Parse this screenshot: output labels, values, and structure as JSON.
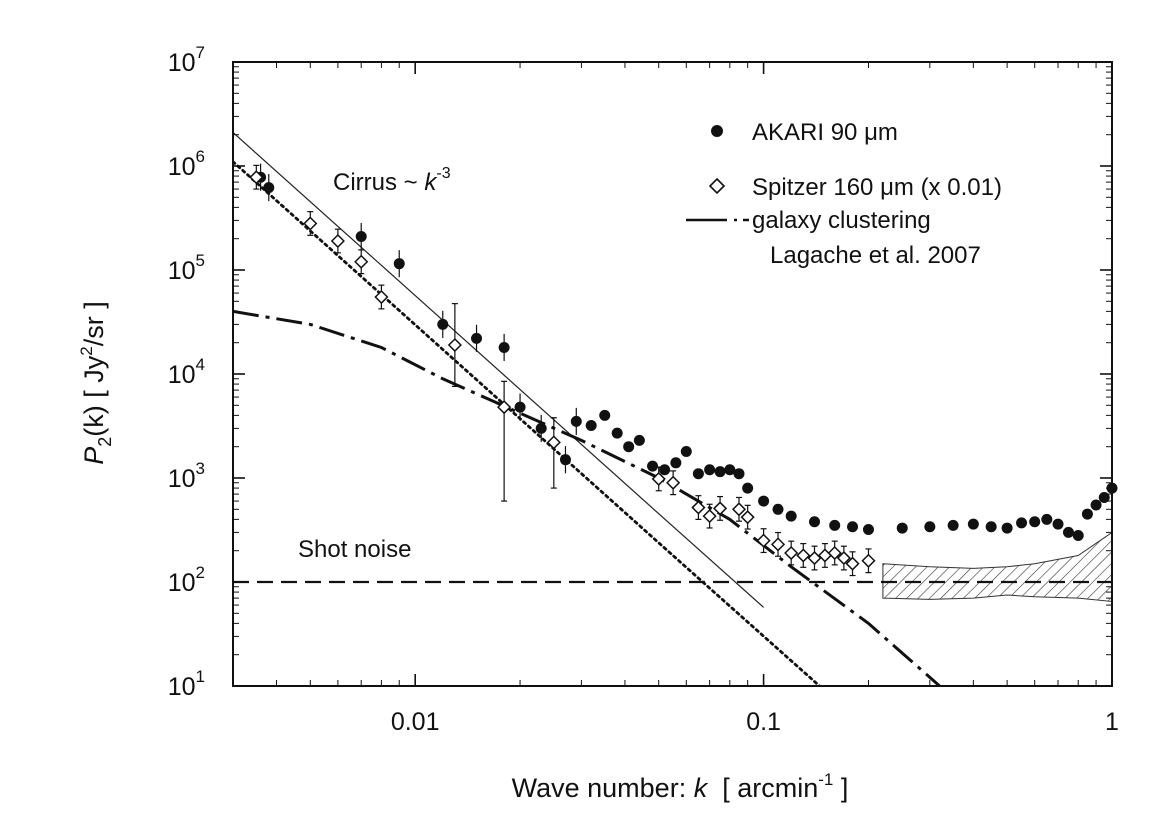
{
  "chart_data": {
    "type": "scatter",
    "title": "",
    "xscale": "log",
    "yscale": "log",
    "xlim": [
      0.003,
      1
    ],
    "ylim": [
      10,
      10000000
    ],
    "xlabel": {
      "main": "Wave number: ",
      "var": "k",
      "open": "  [ arcmin",
      "sup": "-1",
      "close": " ]"
    },
    "ylabel": {
      "var": "P",
      "sub": "2",
      "arg": "(k)",
      "open": "  [ Jy",
      "sup": "2",
      "close": "/sr ]"
    },
    "xticks": [
      {
        "value": 0.01,
        "label": "0.01"
      },
      {
        "value": 0.1,
        "label": "0.1"
      },
      {
        "value": 1,
        "label": "1"
      }
    ],
    "yticks": [
      {
        "value": 10,
        "base": "10",
        "exp": "1"
      },
      {
        "value": 100,
        "base": "10",
        "exp": "2"
      },
      {
        "value": 1000,
        "base": "10",
        "exp": "3"
      },
      {
        "value": 10000,
        "base": "10",
        "exp": "4"
      },
      {
        "value": 100000,
        "base": "10",
        "exp": "5"
      },
      {
        "value": 1000000,
        "base": "10",
        "exp": "6"
      },
      {
        "value": 10000000,
        "base": "10",
        "exp": "7"
      }
    ],
    "legend": {
      "position": "top-right",
      "entries": [
        {
          "series": "akari",
          "label_pre": "AKARI 90 ",
          "mu": "μ",
          "label_post": "m"
        },
        {
          "series": "spitzer",
          "label_pre": "Spitzer 160 ",
          "mu": "μ",
          "label_post": "m (x 0.01)"
        },
        {
          "series": "clustering",
          "label_pre": "galaxy clustering",
          "mu": "",
          "label_post": "",
          "line2": "Lagache et al. 2007"
        }
      ]
    },
    "annotations": {
      "cirrus": {
        "text": "Cirrus ~ ",
        "var": "k",
        "sup": "-3"
      },
      "shot_noise": {
        "text": "Shot noise"
      }
    },
    "series": [
      {
        "name": "AKARI 90 μm",
        "id": "akari",
        "style": "filled-circle",
        "points": [
          [
            0.0036,
            780000
          ],
          [
            0.0038,
            620000
          ],
          [
            0.007,
            210000
          ],
          [
            0.009,
            115000
          ],
          [
            0.012,
            30000
          ],
          [
            0.015,
            22000
          ],
          [
            0.018,
            18000
          ],
          [
            0.02,
            4800
          ],
          [
            0.023,
            3000
          ],
          [
            0.027,
            1500
          ],
          [
            0.029,
            3500
          ],
          [
            0.032,
            3200
          ],
          [
            0.035,
            4000
          ],
          [
            0.038,
            2700
          ],
          [
            0.041,
            2000
          ],
          [
            0.044,
            2300
          ],
          [
            0.048,
            1300
          ],
          [
            0.052,
            1200
          ],
          [
            0.056,
            1400
          ],
          [
            0.06,
            1800
          ],
          [
            0.065,
            1100
          ],
          [
            0.07,
            1200
          ],
          [
            0.075,
            1150
          ],
          [
            0.08,
            1200
          ],
          [
            0.085,
            1100
          ],
          [
            0.09,
            800
          ],
          [
            0.1,
            600
          ],
          [
            0.11,
            500
          ],
          [
            0.12,
            430
          ],
          [
            0.14,
            380
          ],
          [
            0.16,
            350
          ],
          [
            0.18,
            340
          ],
          [
            0.2,
            320
          ],
          [
            0.25,
            330
          ],
          [
            0.3,
            340
          ],
          [
            0.35,
            350
          ],
          [
            0.4,
            360
          ],
          [
            0.45,
            340
          ],
          [
            0.5,
            330
          ],
          [
            0.55,
            370
          ],
          [
            0.6,
            380
          ],
          [
            0.65,
            400
          ],
          [
            0.7,
            360
          ],
          [
            0.75,
            300
          ],
          [
            0.8,
            280
          ],
          [
            0.85,
            450
          ],
          [
            0.9,
            550
          ],
          [
            0.95,
            650
          ],
          [
            1.0,
            800
          ]
        ]
      },
      {
        "name": "Spitzer 160 μm (x 0.01)",
        "id": "spitzer",
        "style": "open-diamond",
        "points": [
          [
            0.0035,
            780000
          ],
          [
            0.005,
            280000
          ],
          [
            0.006,
            190000
          ],
          [
            0.007,
            120000
          ],
          [
            0.008,
            55000
          ],
          [
            0.013,
            19000
          ],
          [
            0.018,
            4800
          ],
          [
            0.025,
            2200
          ],
          [
            0.05,
            980
          ],
          [
            0.055,
            900
          ],
          [
            0.065,
            520
          ],
          [
            0.07,
            430
          ],
          [
            0.075,
            510
          ],
          [
            0.085,
            500
          ],
          [
            0.09,
            420
          ],
          [
            0.1,
            250
          ],
          [
            0.11,
            230
          ],
          [
            0.12,
            190
          ],
          [
            0.13,
            180
          ],
          [
            0.14,
            170
          ],
          [
            0.15,
            180
          ],
          [
            0.16,
            190
          ],
          [
            0.17,
            170
          ],
          [
            0.18,
            150
          ],
          [
            0.2,
            160
          ]
        ]
      },
      {
        "name": "Cirrus ~ k^-3 fit",
        "id": "cirrus_fit",
        "style": "thin-solid",
        "points": [
          [
            0.003,
            2100000
          ],
          [
            0.01,
            56700
          ],
          [
            0.05,
            454
          ],
          [
            0.1,
            57
          ]
        ]
      },
      {
        "name": "Spitzer cirrus fit",
        "id": "spitzer_fit",
        "style": "dotted",
        "points": [
          [
            0.003,
            1100000
          ],
          [
            0.01,
            29700
          ],
          [
            0.05,
            238
          ],
          [
            0.15,
            9
          ]
        ]
      },
      {
        "name": "galaxy clustering Lagache et al. 2007",
        "id": "clustering",
        "style": "dash-dot",
        "points": [
          [
            0.003,
            40000
          ],
          [
            0.005,
            30000
          ],
          [
            0.008,
            18000
          ],
          [
            0.012,
            9000
          ],
          [
            0.02,
            4200
          ],
          [
            0.03,
            2300
          ],
          [
            0.05,
            1000
          ],
          [
            0.08,
            400
          ],
          [
            0.12,
            140
          ],
          [
            0.2,
            40
          ],
          [
            0.32,
            10
          ]
        ]
      },
      {
        "name": "Shot noise",
        "id": "shot_noise",
        "style": "dashed",
        "points": [
          [
            0.003,
            100
          ],
          [
            1.0,
            100
          ]
        ]
      }
    ]
  }
}
